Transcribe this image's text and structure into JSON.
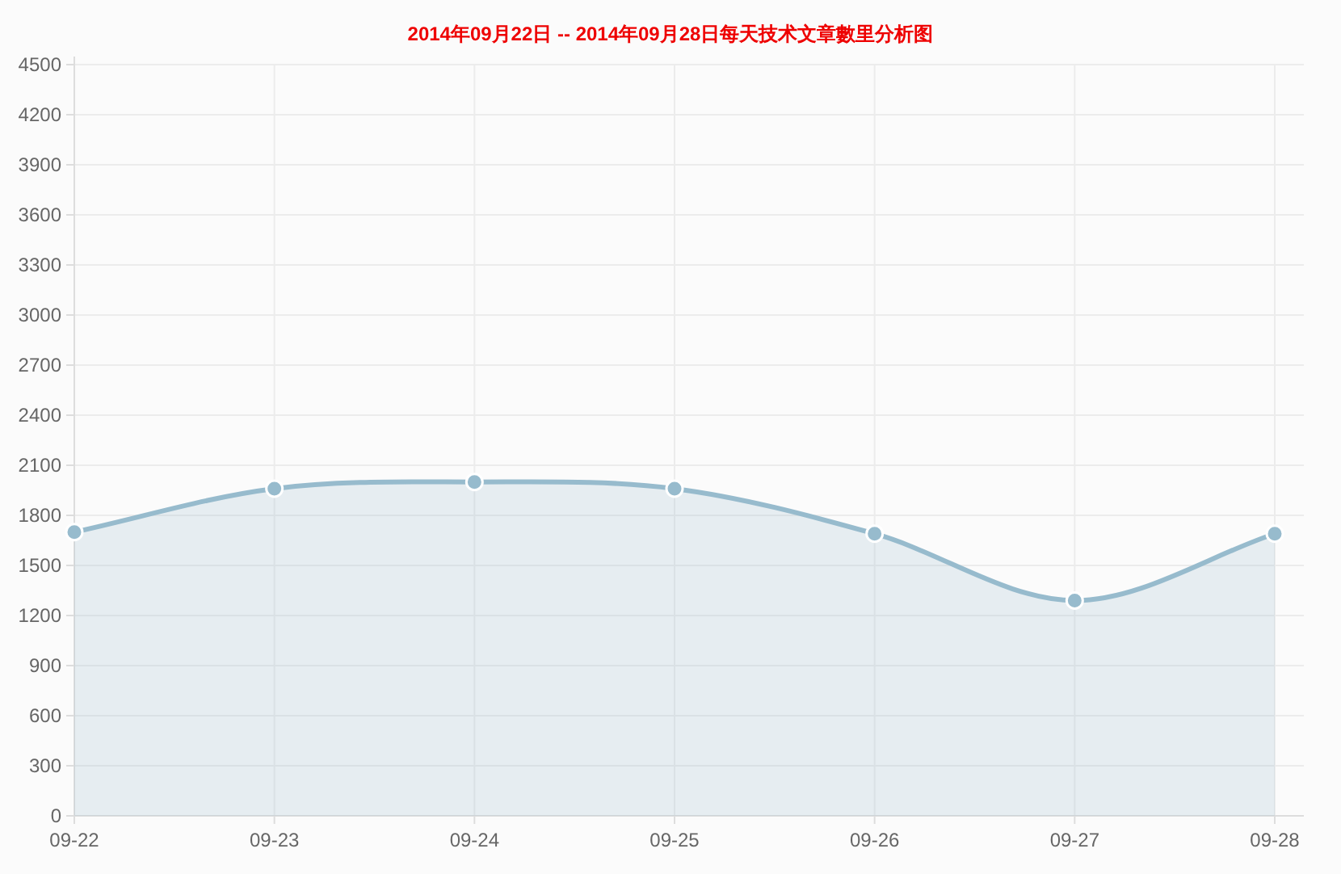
{
  "chart_data": {
    "type": "area",
    "title": "2014年09月22日 -- 2014年09月28日每天技术文章數里分析图",
    "categories": [
      "09-22",
      "09-23",
      "09-24",
      "09-25",
      "09-26",
      "09-27",
      "09-28"
    ],
    "series": [
      {
        "color": "#97bbcd",
        "values": [
          1700,
          1960,
          2000,
          1960,
          1690,
          1290,
          1690
        ]
      }
    ],
    "ylim": [
      0,
      4500
    ],
    "yticks": [
      0,
      300,
      600,
      900,
      1200,
      1500,
      1800,
      2100,
      2400,
      2700,
      3000,
      3300,
      3600,
      3900,
      4200,
      4500
    ],
    "grid": true,
    "marker": "circle",
    "line_style": "solid"
  }
}
